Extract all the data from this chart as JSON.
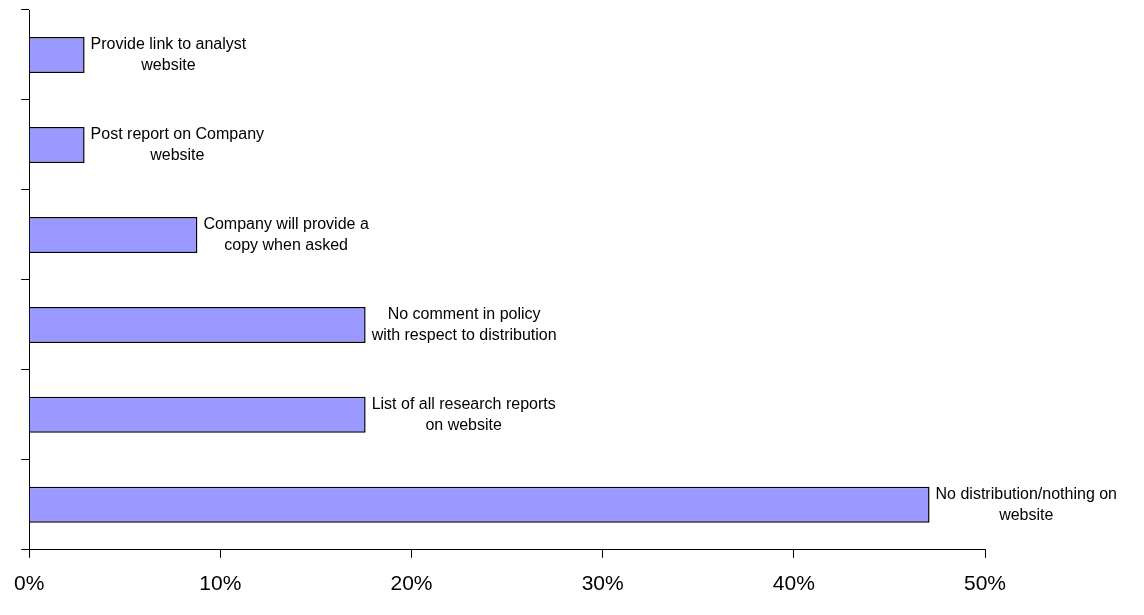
{
  "chart_data": {
    "type": "bar",
    "orientation": "horizontal",
    "categories": [
      "Provide link to analyst website",
      "Post report on Company website",
      "Company will provide a copy when asked",
      "No comment in policy with respect to distribution",
      "List of all research reports on website",
      "No distribution/nothing on website"
    ],
    "values": [
      2.9,
      2.9,
      8.8,
      17.6,
      17.6,
      47.1
    ],
    "color": "#9999ff",
    "xlim": [
      0,
      50
    ],
    "xticks": [
      {
        "value": 0,
        "label": "0%"
      },
      {
        "value": 10,
        "label": "10%"
      },
      {
        "value": 20,
        "label": "20%"
      },
      {
        "value": 30,
        "label": "30%"
      },
      {
        "value": 40,
        "label": "40%"
      },
      {
        "value": 50,
        "label": "50%"
      }
    ],
    "grid": false,
    "legend": false,
    "tick_labels": "x"
  }
}
